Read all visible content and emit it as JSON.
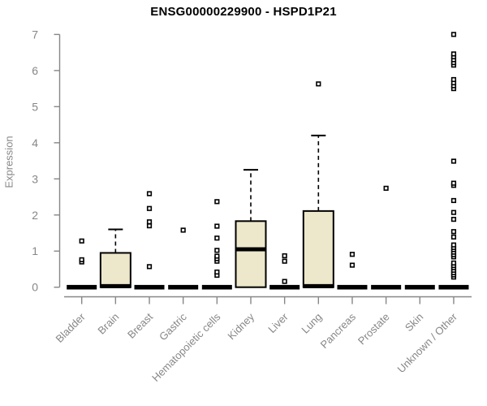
{
  "title": "ENSG00000229900 - HSPD1P21",
  "chart_data": {
    "type": "boxplot",
    "title": "ENSG00000229900 - HSPD1P21",
    "xlabel": "",
    "ylabel": "Expression",
    "ylim": [
      0,
      7
    ],
    "yticks": [
      0,
      1,
      2,
      3,
      4,
      5,
      6,
      7
    ],
    "grid": false,
    "legend": "none",
    "categories": [
      "Bladder",
      "Brain",
      "Breast",
      "Gastric",
      "Hematopoietic cells",
      "Kidney",
      "Liver",
      "Lung",
      "Pancreas",
      "Prostate",
      "Skin",
      "Unknown / Other"
    ],
    "boxes": [
      {
        "category": "Bladder",
        "q1": 0,
        "median": 0,
        "q3": 0,
        "whisker_low": 0,
        "whisker_high": 0,
        "outliers": [
          0.7,
          0.76,
          1.28
        ]
      },
      {
        "category": "Brain",
        "q1": 0,
        "median": 0.03,
        "q3": 0.95,
        "whisker_low": 0,
        "whisker_high": 1.6,
        "outliers": []
      },
      {
        "category": "Breast",
        "q1": 0,
        "median": 0,
        "q3": 0,
        "whisker_low": 0,
        "whisker_high": 0,
        "outliers": [
          0.57,
          1.7,
          1.81,
          2.18,
          2.59
        ]
      },
      {
        "category": "Gastric",
        "q1": 0,
        "median": 0,
        "q3": 0,
        "whisker_low": 0,
        "whisker_high": 0,
        "outliers": [
          1.58
        ]
      },
      {
        "category": "Hematopoietic cells",
        "q1": 0,
        "median": 0,
        "q3": 0,
        "whisker_low": 0,
        "whisker_high": 0,
        "outliers": [
          0.33,
          0.42,
          0.72,
          0.79,
          0.86,
          1.02,
          1.36,
          1.69,
          2.37
        ]
      },
      {
        "category": "Kidney",
        "q1": 0,
        "median": 1.05,
        "q3": 1.83,
        "whisker_low": 0,
        "whisker_high": 3.25,
        "outliers": []
      },
      {
        "category": "Liver",
        "q1": 0,
        "median": 0,
        "q3": 0,
        "whisker_low": 0,
        "whisker_high": 0,
        "outliers": [
          0.16,
          0.72,
          0.87
        ]
      },
      {
        "category": "Lung",
        "q1": 0,
        "median": 0.03,
        "q3": 2.11,
        "whisker_low": 0,
        "whisker_high": 4.2,
        "outliers": [
          5.63
        ]
      },
      {
        "category": "Pancreas",
        "q1": 0,
        "median": 0,
        "q3": 0,
        "whisker_low": 0,
        "whisker_high": 0,
        "outliers": [
          0.61,
          0.91
        ]
      },
      {
        "category": "Prostate",
        "q1": 0,
        "median": 0,
        "q3": 0,
        "whisker_low": 0,
        "whisker_high": 0,
        "outliers": [
          2.74
        ]
      },
      {
        "category": "Skin",
        "q1": 0,
        "median": 0,
        "q3": 0,
        "whisker_low": 0,
        "whisker_high": 0,
        "outliers": []
      },
      {
        "category": "Unknown / Other",
        "q1": 0,
        "median": 0,
        "q3": 0,
        "whisker_low": 0,
        "whisker_high": 0,
        "outliers": [
          0.28,
          0.34,
          0.4,
          0.47,
          0.54,
          0.6,
          0.67,
          0.84,
          0.9,
          0.97,
          1.04,
          1.1,
          1.17,
          1.39,
          1.54,
          1.88,
          2.07,
          2.4,
          2.82,
          2.88,
          3.49,
          5.5,
          5.58,
          5.66,
          5.75,
          6.15,
          6.22,
          6.3,
          6.38,
          6.46,
          7.0
        ]
      }
    ],
    "colors": {
      "box_fill": "#EDE7CB",
      "box_stroke": "#000000",
      "median": "#000000",
      "outlier": "#000000",
      "axis": "#878787",
      "title": "#000000"
    }
  }
}
